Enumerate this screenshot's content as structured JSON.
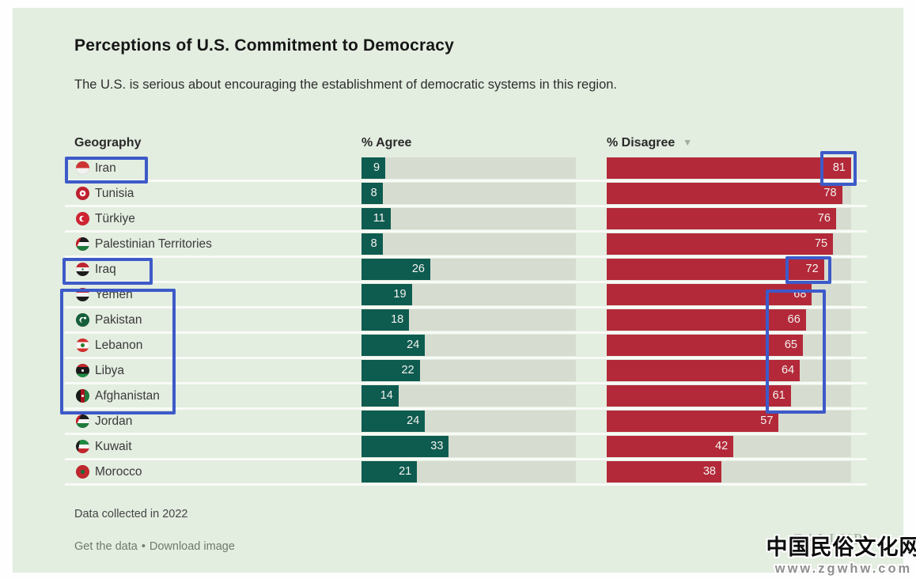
{
  "page": {
    "title": "Perceptions of U.S. Commitment to Democracy",
    "subtitle": "The U.S. is serious about encouraging the establishment of democratic systems in this region.",
    "footnote": "Data collected in 2022",
    "links": {
      "get_data": "Get the data",
      "separator": "•",
      "download_image": "Download image"
    },
    "brand": "GALLUP"
  },
  "table": {
    "headers": {
      "geography": "Geography",
      "agree": "% Agree",
      "disagree": "% Disagree"
    },
    "sort": {
      "column": "% Disagree",
      "order": "descending",
      "icon": "sort-descending-triangle"
    },
    "rows": [
      {
        "country": "Iran",
        "flag": "iran",
        "agree": 9,
        "disagree": 81
      },
      {
        "country": "Tunisia",
        "flag": "tunisia",
        "agree": 8,
        "disagree": 78
      },
      {
        "country": "Türkiye",
        "flag": "turkiye",
        "agree": 11,
        "disagree": 76
      },
      {
        "country": "Palestinian Territories",
        "flag": "palestine",
        "agree": 8,
        "disagree": 75
      },
      {
        "country": "Iraq",
        "flag": "iraq",
        "agree": 26,
        "disagree": 72
      },
      {
        "country": "Yemen",
        "flag": "yemen",
        "agree": 19,
        "disagree": 68
      },
      {
        "country": "Pakistan",
        "flag": "pakistan",
        "agree": 18,
        "disagree": 66
      },
      {
        "country": "Lebanon",
        "flag": "lebanon",
        "agree": 24,
        "disagree": 65
      },
      {
        "country": "Libya",
        "flag": "libya",
        "agree": 22,
        "disagree": 64
      },
      {
        "country": "Afghanistan",
        "flag": "afghanistan",
        "agree": 14,
        "disagree": 61
      },
      {
        "country": "Jordan",
        "flag": "jordan",
        "agree": 24,
        "disagree": 57
      },
      {
        "country": "Kuwait",
        "flag": "kuwait",
        "agree": 33,
        "disagree": 42
      },
      {
        "country": "Morocco",
        "flag": "morocco",
        "agree": 21,
        "disagree": 38
      }
    ]
  },
  "chart_data": {
    "type": "bar",
    "orientation": "horizontal",
    "title": "Perceptions of U.S. Commitment to Democracy",
    "subtitle": "The U.S. is serious about encouraging the establishment of democratic systems in this region.",
    "categories": [
      "Iran",
      "Tunisia",
      "Türkiye",
      "Palestinian Territories",
      "Iraq",
      "Yemen",
      "Pakistan",
      "Lebanon",
      "Libya",
      "Afghanistan",
      "Jordan",
      "Kuwait",
      "Morocco"
    ],
    "series": [
      {
        "name": "% Agree",
        "color": "#0e5b50",
        "values": [
          9,
          8,
          11,
          8,
          26,
          19,
          18,
          24,
          22,
          14,
          24,
          33,
          21
        ]
      },
      {
        "name": "% Disagree",
        "color": "#b3293a",
        "values": [
          81,
          78,
          76,
          75,
          72,
          68,
          66,
          65,
          64,
          61,
          57,
          42,
          38
        ]
      }
    ],
    "value_axis_max": 81,
    "sorted_by": "% Disagree descending",
    "data_labels": "inside-end",
    "track_color": "#d6ddd0",
    "background_color": "#e3ede0",
    "footnote": "Data collected in 2022",
    "source_brand": "GALLUP"
  },
  "annotations": {
    "color": "#3d5ac9",
    "boxes": [
      {
        "target": "Iran row label"
      },
      {
        "target": "Iran disagree value 81"
      },
      {
        "target": "Iraq row label"
      },
      {
        "target": "Iraq disagree value 72"
      },
      {
        "target": "Labels Yemen through Afghanistan"
      },
      {
        "target": "Disagree values 68 through 61"
      }
    ]
  },
  "watermark": {
    "text": "中国民俗文化网",
    "url": "www.zgwhw.com"
  }
}
